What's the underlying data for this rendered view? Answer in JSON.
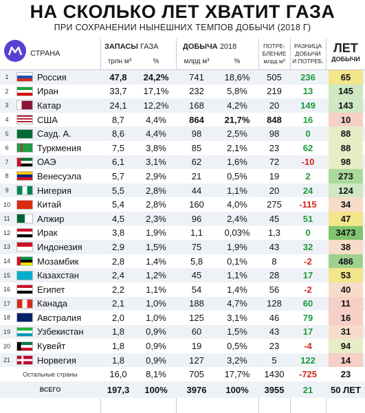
{
  "title": "НА СКОЛЬКО ЛЕТ ХВАТИТ ГАЗА",
  "subtitle": "ПРИ СОХРАНЕНИИ НЫНЕШНИХ ТЕМПОВ ДОБЫЧИ (2018 Г)",
  "header": {
    "country": "СТРАНА",
    "reserves": "ЗАПАСЫ",
    "reserves_gas": "ГАЗА",
    "reserves_unit": "трлн м³",
    "percent": "%",
    "production": "ДОБЫЧА",
    "production_year": "2018",
    "production_unit": "млрд м³",
    "consumption_l1": "ПОТРЕ-",
    "consumption_l2": "БЛЕНИЕ",
    "consumption_unit": "млрд м³",
    "diff_l1": "РАЗНИЦА",
    "diff_l2": "ДОБЫЧИ",
    "diff_l3": "И ПОТРЕБ.",
    "years_l1": "ЛЕТ",
    "years_l2": "ДОБЫЧИ"
  },
  "rows": [
    {
      "rank": "1",
      "country": "Россия",
      "flag": "ru",
      "res": "47,8",
      "share": "24,2%",
      "prod": "741",
      "pshare": "18,6%",
      "cons": "505",
      "diff": "236",
      "years": "65",
      "years_color": "#f3e58a",
      "bold": true
    },
    {
      "rank": "2",
      "country": "Иран",
      "flag": "ir",
      "res": "33,7",
      "share": "17,1%",
      "prod": "232",
      "pshare": "5,8%",
      "cons": "219",
      "diff": "13",
      "years": "145",
      "years_color": "#cfe8c3",
      "bold": false
    },
    {
      "rank": "3",
      "country": "Катар",
      "flag": "qa",
      "res": "24,1",
      "share": "12,2%",
      "prod": "168",
      "pshare": "4,2%",
      "cons": "20",
      "diff": "149",
      "years": "143",
      "years_color": "#cfe8c3",
      "bold": false
    },
    {
      "rank": "4",
      "country": "США",
      "flag": "us",
      "res": "8,7",
      "share": "4,4%",
      "prod": "864",
      "pshare": "21,7%",
      "cons": "848",
      "diff": "16",
      "years": "10",
      "years_color": "#f6cfc6",
      "bold": false,
      "bold_prod": true
    },
    {
      "rank": "5",
      "country": "Сауд. А.",
      "flag": "sa",
      "res": "8,6",
      "share": "4,4%",
      "prod": "98",
      "pshare": "2,5%",
      "cons": "98",
      "diff": "0",
      "years": "88",
      "years_color": "#e7edc6",
      "bold": false
    },
    {
      "rank": "6",
      "country": "Туркмения",
      "flag": "tm",
      "res": "7,5",
      "share": "3,8%",
      "prod": "85",
      "pshare": "2,1%",
      "cons": "23",
      "diff": "62",
      "years": "88",
      "years_color": "#e7edc6",
      "bold": false
    },
    {
      "rank": "7",
      "country": "ОАЭ",
      "flag": "ae",
      "res": "6,1",
      "share": "3,1%",
      "prod": "62",
      "pshare": "1,6%",
      "cons": "72",
      "diff": "-10",
      "years": "98",
      "years_color": "#e7edc6",
      "bold": false
    },
    {
      "rank": "8",
      "country": "Венесуэла",
      "flag": "ve",
      "res": "5,7",
      "share": "2,9%",
      "prod": "21",
      "pshare": "0,5%",
      "cons": "19",
      "diff": "2",
      "years": "273",
      "years_color": "#a9d99b",
      "bold": false
    },
    {
      "rank": "9",
      "country": "Нигерия",
      "flag": "ng",
      "res": "5,5",
      "share": "2,8%",
      "prod": "44",
      "pshare": "1,1%",
      "cons": "20",
      "diff": "24",
      "years": "124",
      "years_color": "#cfe8c3",
      "bold": false
    },
    {
      "rank": "10",
      "country": "Китай",
      "flag": "cn",
      "res": "5,4",
      "share": "2,8%",
      "prod": "160",
      "pshare": "4,0%",
      "cons": "275",
      "diff": "-115",
      "years": "34",
      "years_color": "#f7ddc9",
      "bold": false
    },
    {
      "rank": "11",
      "country": "Алжир",
      "flag": "dz",
      "res": "4,5",
      "share": "2,3%",
      "prod": "96",
      "pshare": "2,4%",
      "cons": "45",
      "diff": "51",
      "years": "47",
      "years_color": "#f3e58a",
      "bold": false
    },
    {
      "rank": "12",
      "country": "Ирак",
      "flag": "iq",
      "res": "3,8",
      "share": "1,9%",
      "prod": "1,1",
      "pshare": "0,03%",
      "cons": "1,3",
      "diff": "0",
      "years": "3473",
      "years_color": "#7fc56e",
      "bold": false
    },
    {
      "rank": "13",
      "country": "Индонезия",
      "flag": "id",
      "res": "2,9",
      "share": "1,5%",
      "prod": "75",
      "pshare": "1,9%",
      "cons": "43",
      "diff": "32",
      "years": "38",
      "years_color": "#f7ddc9",
      "bold": false
    },
    {
      "rank": "14",
      "country": "Мозамбик",
      "flag": "mz",
      "res": "2,8",
      "share": "1,4%",
      "prod": "5,8",
      "pshare": "0,1%",
      "cons": "8",
      "diff": "-2",
      "years": "486",
      "years_color": "#9ed18e",
      "bold": false
    },
    {
      "rank": "15",
      "country": "Казахстан",
      "flag": "kz",
      "res": "2,4",
      "share": "1,2%",
      "prod": "45",
      "pshare": "1,1%",
      "cons": "28",
      "diff": "17",
      "years": "53",
      "years_color": "#f3e58a",
      "bold": false
    },
    {
      "rank": "16",
      "country": "Египет",
      "flag": "eg",
      "res": "2,2",
      "share": "1,1%",
      "prod": "54",
      "pshare": "1,4%",
      "cons": "56",
      "diff": "-2",
      "years": "40",
      "years_color": "#f7ddc9",
      "bold": false
    },
    {
      "rank": "17",
      "country": "Канада",
      "flag": "ca",
      "res": "2,1",
      "share": "1,0%",
      "prod": "188",
      "pshare": "4,7%",
      "cons": "128",
      "diff": "60",
      "years": "11",
      "years_color": "#f6cfc6",
      "bold": false
    },
    {
      "rank": "18",
      "country": "Австралия",
      "flag": "au",
      "res": "2,0",
      "share": "1,0%",
      "prod": "125",
      "pshare": "3,1%",
      "cons": "46",
      "diff": "79",
      "years": "16",
      "years_color": "#f6cfc6",
      "bold": false
    },
    {
      "rank": "19",
      "country": "Узбекистан",
      "flag": "uz",
      "res": "1,8",
      "share": "0,9%",
      "prod": "60",
      "pshare": "1,5%",
      "cons": "43",
      "diff": "17",
      "years": "31",
      "years_color": "#f7ddc9",
      "bold": false
    },
    {
      "rank": "20",
      "country": "Кувейт",
      "flag": "kw",
      "res": "1,8",
      "share": "0,9%",
      "prod": "19",
      "pshare": "0,5%",
      "cons": "23",
      "diff": "-4",
      "years": "94",
      "years_color": "#e7edc6",
      "bold": false
    },
    {
      "rank": "21",
      "country": "Норвегия",
      "flag": "no",
      "res": "1,8",
      "share": "0,9%",
      "prod": "127",
      "pshare": "3,2%",
      "cons": "5",
      "diff": "122",
      "years": "14",
      "years_color": "#f6cfc6",
      "bold": false
    }
  ],
  "others": {
    "country": "Остальные страны",
    "res": "16,0",
    "share": "8,1%",
    "prod": "705",
    "pshare": "17,7%",
    "cons": "1430",
    "diff": "-725",
    "years": "23"
  },
  "total": {
    "label": "ВСЕГО",
    "res": "197,3",
    "share": "100%",
    "prod": "3976",
    "pshare": "100%",
    "cons": "3955",
    "diff": "21",
    "years": "50 ЛЕТ"
  }
}
